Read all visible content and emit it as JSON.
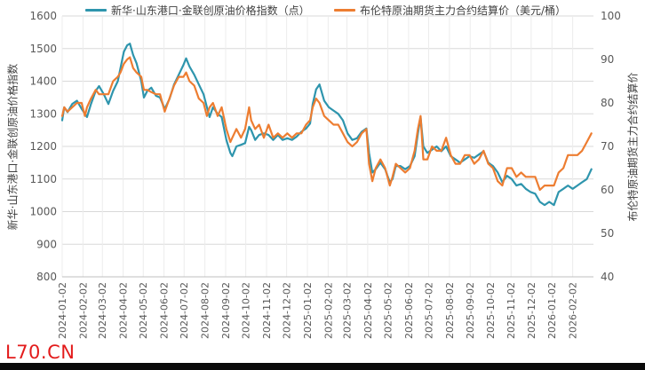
{
  "chart_data": {
    "type": "line",
    "series": [
      {
        "name": "新华·山东港口·金联创原油价格指数（点）",
        "color": "#2e95ad",
        "axis": "left",
        "points": [
          [
            "2024-01-02",
            1280
          ],
          [
            "2024-01-05",
            1320
          ],
          [
            "2024-01-10",
            1305
          ],
          [
            "2024-01-17",
            1330
          ],
          [
            "2024-01-24",
            1340
          ],
          [
            "2024-01-31",
            1315
          ],
          [
            "2024-02-05",
            1300
          ],
          [
            "2024-02-08",
            1290
          ],
          [
            "2024-02-14",
            1330
          ],
          [
            "2024-02-21",
            1370
          ],
          [
            "2024-02-26",
            1385
          ],
          [
            "2024-03-04",
            1360
          ],
          [
            "2024-03-11",
            1330
          ],
          [
            "2024-03-18",
            1370
          ],
          [
            "2024-03-25",
            1400
          ],
          [
            "2024-03-29",
            1440
          ],
          [
            "2024-04-03",
            1490
          ],
          [
            "2024-04-08",
            1510
          ],
          [
            "2024-04-12",
            1515
          ],
          [
            "2024-04-17",
            1480
          ],
          [
            "2024-04-22",
            1455
          ],
          [
            "2024-04-29",
            1400
          ],
          [
            "2024-05-03",
            1350
          ],
          [
            "2024-05-08",
            1370
          ],
          [
            "2024-05-14",
            1380
          ],
          [
            "2024-05-21",
            1355
          ],
          [
            "2024-05-27",
            1350
          ],
          [
            "2024-06-03",
            1315
          ],
          [
            "2024-06-10",
            1345
          ],
          [
            "2024-06-17",
            1390
          ],
          [
            "2024-06-24",
            1420
          ],
          [
            "2024-07-01",
            1450
          ],
          [
            "2024-07-05",
            1470
          ],
          [
            "2024-07-10",
            1445
          ],
          [
            "2024-07-17",
            1420
          ],
          [
            "2024-07-24",
            1390
          ],
          [
            "2024-07-31",
            1360
          ],
          [
            "2024-08-05",
            1320
          ],
          [
            "2024-08-09",
            1290
          ],
          [
            "2024-08-14",
            1320
          ],
          [
            "2024-08-21",
            1300
          ],
          [
            "2024-08-27",
            1290
          ],
          [
            "2024-09-03",
            1220
          ],
          [
            "2024-09-09",
            1180
          ],
          [
            "2024-09-12",
            1170
          ],
          [
            "2024-09-18",
            1200
          ],
          [
            "2024-09-25",
            1205
          ],
          [
            "2024-10-01",
            1210
          ],
          [
            "2024-10-07",
            1260
          ],
          [
            "2024-10-10",
            1250
          ],
          [
            "2024-10-16",
            1220
          ],
          [
            "2024-10-22",
            1235
          ],
          [
            "2024-10-29",
            1240
          ],
          [
            "2024-11-05",
            1235
          ],
          [
            "2024-11-12",
            1220
          ],
          [
            "2024-11-19",
            1235
          ],
          [
            "2024-11-26",
            1220
          ],
          [
            "2024-12-03",
            1225
          ],
          [
            "2024-12-10",
            1220
          ],
          [
            "2024-12-17",
            1230
          ],
          [
            "2024-12-24",
            1245
          ],
          [
            "2024-12-31",
            1255
          ],
          [
            "2025-01-06",
            1270
          ],
          [
            "2025-01-10",
            1330
          ],
          [
            "2025-01-15",
            1375
          ],
          [
            "2025-01-20",
            1390
          ],
          [
            "2025-01-27",
            1340
          ],
          [
            "2025-02-03",
            1320
          ],
          [
            "2025-02-10",
            1310
          ],
          [
            "2025-02-17",
            1300
          ],
          [
            "2025-02-24",
            1280
          ],
          [
            "2025-03-03",
            1240
          ],
          [
            "2025-03-10",
            1220
          ],
          [
            "2025-03-17",
            1225
          ],
          [
            "2025-03-24",
            1245
          ],
          [
            "2025-03-31",
            1255
          ],
          [
            "2025-04-04",
            1180
          ],
          [
            "2025-04-09",
            1120
          ],
          [
            "2025-04-14",
            1130
          ],
          [
            "2025-04-21",
            1150
          ],
          [
            "2025-04-28",
            1130
          ],
          [
            "2025-05-05",
            1090
          ],
          [
            "2025-05-09",
            1100
          ],
          [
            "2025-05-14",
            1140
          ],
          [
            "2025-05-21",
            1140
          ],
          [
            "2025-05-28",
            1130
          ],
          [
            "2025-06-04",
            1140
          ],
          [
            "2025-06-11",
            1170
          ],
          [
            "2025-06-16",
            1240
          ],
          [
            "2025-06-20",
            1290
          ],
          [
            "2025-06-24",
            1200
          ],
          [
            "2025-06-30",
            1180
          ],
          [
            "2025-07-07",
            1190
          ],
          [
            "2025-07-14",
            1200
          ],
          [
            "2025-07-21",
            1185
          ],
          [
            "2025-07-28",
            1200
          ],
          [
            "2025-08-04",
            1170
          ],
          [
            "2025-08-11",
            1160
          ],
          [
            "2025-08-18",
            1150
          ],
          [
            "2025-08-25",
            1160
          ],
          [
            "2025-09-01",
            1170
          ],
          [
            "2025-09-08",
            1165
          ],
          [
            "2025-09-15",
            1175
          ],
          [
            "2025-09-22",
            1185
          ],
          [
            "2025-09-29",
            1150
          ],
          [
            "2025-10-06",
            1140
          ],
          [
            "2025-10-13",
            1120
          ],
          [
            "2025-10-20",
            1090
          ],
          [
            "2025-10-27",
            1110
          ],
          [
            "2025-11-03",
            1100
          ],
          [
            "2025-11-10",
            1080
          ],
          [
            "2025-11-17",
            1085
          ],
          [
            "2025-11-24",
            1070
          ],
          [
            "2025-12-01",
            1060
          ],
          [
            "2025-12-08",
            1055
          ],
          [
            "2025-12-15",
            1030
          ],
          [
            "2025-12-22",
            1020
          ],
          [
            "2025-12-29",
            1030
          ],
          [
            "2026-01-05",
            1020
          ],
          [
            "2026-01-12",
            1060
          ],
          [
            "2026-01-19",
            1070
          ],
          [
            "2026-01-26",
            1080
          ],
          [
            "2026-02-02",
            1070
          ],
          [
            "2026-02-09",
            1080
          ],
          [
            "2026-02-16",
            1090
          ],
          [
            "2026-02-23",
            1100
          ],
          [
            "2026-03-02",
            1130
          ]
        ]
      },
      {
        "name": "布伦特原油期货主力合约结算价（美元/桶）",
        "color": "#ed7d31",
        "axis": "right",
        "points": [
          [
            "2024-01-02",
            77
          ],
          [
            "2024-01-05",
            79
          ],
          [
            "2024-01-10",
            78
          ],
          [
            "2024-01-17",
            79
          ],
          [
            "2024-01-24",
            80
          ],
          [
            "2024-01-31",
            80
          ],
          [
            "2024-02-05",
            77
          ],
          [
            "2024-02-08",
            79
          ],
          [
            "2024-02-14",
            81
          ],
          [
            "2024-02-21",
            83
          ],
          [
            "2024-02-26",
            82
          ],
          [
            "2024-03-04",
            82
          ],
          [
            "2024-03-11",
            82
          ],
          [
            "2024-03-18",
            85
          ],
          [
            "2024-03-25",
            86
          ],
          [
            "2024-03-29",
            87
          ],
          [
            "2024-04-03",
            89
          ],
          [
            "2024-04-08",
            90
          ],
          [
            "2024-04-12",
            90.5
          ],
          [
            "2024-04-17",
            88
          ],
          [
            "2024-04-22",
            87
          ],
          [
            "2024-04-29",
            86
          ],
          [
            "2024-05-03",
            83
          ],
          [
            "2024-05-08",
            83
          ],
          [
            "2024-05-14",
            82.5
          ],
          [
            "2024-05-21",
            82
          ],
          [
            "2024-05-27",
            82
          ],
          [
            "2024-06-03",
            78
          ],
          [
            "2024-06-10",
            81
          ],
          [
            "2024-06-17",
            84
          ],
          [
            "2024-06-24",
            86
          ],
          [
            "2024-07-01",
            86
          ],
          [
            "2024-07-05",
            87
          ],
          [
            "2024-07-10",
            85
          ],
          [
            "2024-07-17",
            84
          ],
          [
            "2024-07-24",
            81
          ],
          [
            "2024-07-31",
            80
          ],
          [
            "2024-08-05",
            77
          ],
          [
            "2024-08-09",
            79
          ],
          [
            "2024-08-14",
            80
          ],
          [
            "2024-08-21",
            77
          ],
          [
            "2024-08-27",
            79
          ],
          [
            "2024-09-03",
            74
          ],
          [
            "2024-09-09",
            71
          ],
          [
            "2024-09-12",
            72
          ],
          [
            "2024-09-18",
            74
          ],
          [
            "2024-09-25",
            72
          ],
          [
            "2024-10-01",
            74
          ],
          [
            "2024-10-07",
            79
          ],
          [
            "2024-10-10",
            76
          ],
          [
            "2024-10-16",
            74
          ],
          [
            "2024-10-22",
            75
          ],
          [
            "2024-10-29",
            72
          ],
          [
            "2024-11-05",
            75
          ],
          [
            "2024-11-12",
            72
          ],
          [
            "2024-11-19",
            73
          ],
          [
            "2024-11-26",
            72
          ],
          [
            "2024-12-03",
            73
          ],
          [
            "2024-12-10",
            72
          ],
          [
            "2024-12-17",
            73
          ],
          [
            "2024-12-24",
            73
          ],
          [
            "2024-12-31",
            75
          ],
          [
            "2025-01-06",
            76
          ],
          [
            "2025-01-10",
            79
          ],
          [
            "2025-01-15",
            81
          ],
          [
            "2025-01-20",
            80
          ],
          [
            "2025-01-27",
            77
          ],
          [
            "2025-02-03",
            76
          ],
          [
            "2025-02-10",
            75
          ],
          [
            "2025-02-17",
            75
          ],
          [
            "2025-02-24",
            73
          ],
          [
            "2025-03-03",
            71
          ],
          [
            "2025-03-10",
            70
          ],
          [
            "2025-03-17",
            71
          ],
          [
            "2025-03-24",
            73
          ],
          [
            "2025-03-31",
            74
          ],
          [
            "2025-04-04",
            66
          ],
          [
            "2025-04-09",
            62
          ],
          [
            "2025-04-14",
            65
          ],
          [
            "2025-04-21",
            67
          ],
          [
            "2025-04-28",
            65
          ],
          [
            "2025-05-05",
            61
          ],
          [
            "2025-05-09",
            63
          ],
          [
            "2025-05-14",
            66
          ],
          [
            "2025-05-21",
            65
          ],
          [
            "2025-05-28",
            64
          ],
          [
            "2025-06-04",
            65
          ],
          [
            "2025-06-11",
            69
          ],
          [
            "2025-06-16",
            74
          ],
          [
            "2025-06-20",
            77
          ],
          [
            "2025-06-24",
            67
          ],
          [
            "2025-06-30",
            67
          ],
          [
            "2025-07-07",
            70
          ],
          [
            "2025-07-14",
            69
          ],
          [
            "2025-07-21",
            69
          ],
          [
            "2025-07-28",
            72
          ],
          [
            "2025-08-04",
            68
          ],
          [
            "2025-08-11",
            66
          ],
          [
            "2025-08-18",
            66
          ],
          [
            "2025-08-25",
            68
          ],
          [
            "2025-09-01",
            68
          ],
          [
            "2025-09-08",
            66
          ],
          [
            "2025-09-15",
            67
          ],
          [
            "2025-09-22",
            69
          ],
          [
            "2025-09-29",
            66
          ],
          [
            "2025-10-06",
            65
          ],
          [
            "2025-10-13",
            62
          ],
          [
            "2025-10-20",
            61
          ],
          [
            "2025-10-27",
            65
          ],
          [
            "2025-11-03",
            65
          ],
          [
            "2025-11-10",
            63
          ],
          [
            "2025-11-17",
            64
          ],
          [
            "2025-11-24",
            63
          ],
          [
            "2025-12-01",
            63
          ],
          [
            "2025-12-08",
            63
          ],
          [
            "2025-12-15",
            60
          ],
          [
            "2025-12-22",
            61
          ],
          [
            "2025-12-29",
            61
          ],
          [
            "2026-01-05",
            61
          ],
          [
            "2026-01-12",
            64
          ],
          [
            "2026-01-19",
            65
          ],
          [
            "2026-01-26",
            68
          ],
          [
            "2026-02-02",
            68
          ],
          [
            "2026-02-09",
            68
          ],
          [
            "2026-02-16",
            69
          ],
          [
            "2026-02-23",
            71
          ],
          [
            "2026-03-02",
            73
          ]
        ]
      }
    ],
    "left_axis": {
      "label": "新华·山东港口·金联创原油价格指数",
      "ylim": [
        800,
        1600
      ],
      "ticks": [
        800,
        900,
        1000,
        1100,
        1200,
        1300,
        1400,
        1500,
        1600
      ]
    },
    "right_axis": {
      "label": "布伦特原油期货主力合约结算价",
      "ylim": [
        40,
        100
      ],
      "ticks": [
        40,
        50,
        60,
        70,
        80,
        90,
        100
      ]
    },
    "x_tick_labels": [
      "2024-01-02",
      "2024-02-02",
      "2024-03-02",
      "2024-04-02",
      "2024-05-02",
      "2024-06-02",
      "2024-07-02",
      "2024-08-02",
      "2024-09-02",
      "2024-10-02",
      "2024-11-02",
      "2024-12-02",
      "2025-01-02",
      "2025-02-02",
      "2025-03-02",
      "2025-04-02",
      "2025-05-02",
      "2025-06-02",
      "2025-07-02",
      "2025-08-02",
      "2025-09-02",
      "2025-10-02",
      "2025-11-02",
      "2025-12-02",
      "2026-01-02",
      "2026-02-02"
    ],
    "x_range": [
      "2024-01-02",
      "2026-03-05"
    ],
    "grid": true,
    "legend_placement": "top"
  },
  "watermark": "L70.CN"
}
